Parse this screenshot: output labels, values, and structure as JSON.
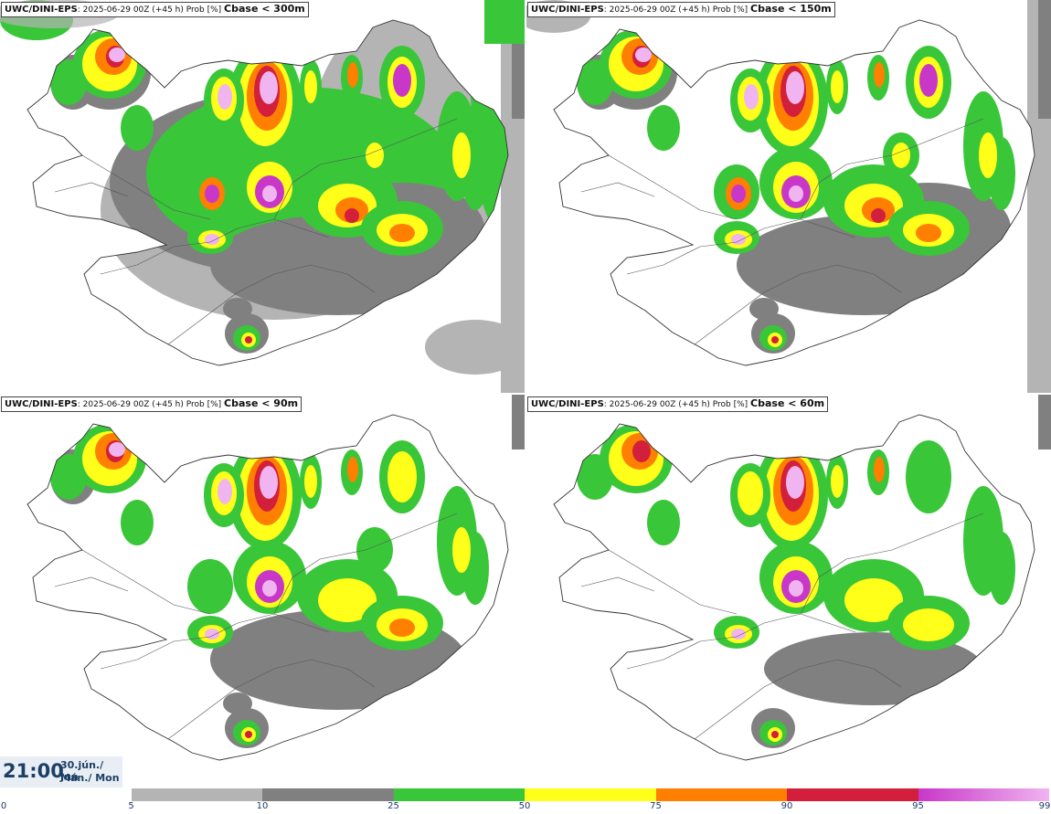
{
  "panels": [
    {
      "model": "UWC/DINI-EPS",
      "run": "2025-06-29 00Z (+45 h) Prob [%]",
      "threshold": "Cbase < 300m",
      "level": 4
    },
    {
      "model": "UWC/DINI-EPS",
      "run": "2025-06-29 00Z (+45 h) Prob [%]",
      "threshold": "Cbase < 150m",
      "level": 3
    },
    {
      "model": "UWC/DINI-EPS",
      "run": "2025-06-29 00Z (+45 h) Prob [%]",
      "threshold": "Cbase < 90m",
      "level": 2
    },
    {
      "model": "UWC/DINI-EPS",
      "run": "2025-06-29 00Z (+45 h) Prob [%]",
      "threshold": "Cbase < 60m",
      "level": 1
    }
  ],
  "valid_time": {
    "time": "21:00",
    "date_line1": "30.jún./ Jun",
    "date_line2": "Mán./ Mon"
  },
  "colorbar": {
    "ticks": [
      "0",
      "5",
      "10",
      "25",
      "50",
      "75",
      "90",
      "95",
      "99"
    ],
    "colors": [
      "#ffffff",
      "#b4b4b4",
      "#808080",
      "#39c639",
      "#ffff1a",
      "#ff7f00",
      "#d21f3c",
      "#c837c8",
      "#f0b4f0"
    ]
  }
}
